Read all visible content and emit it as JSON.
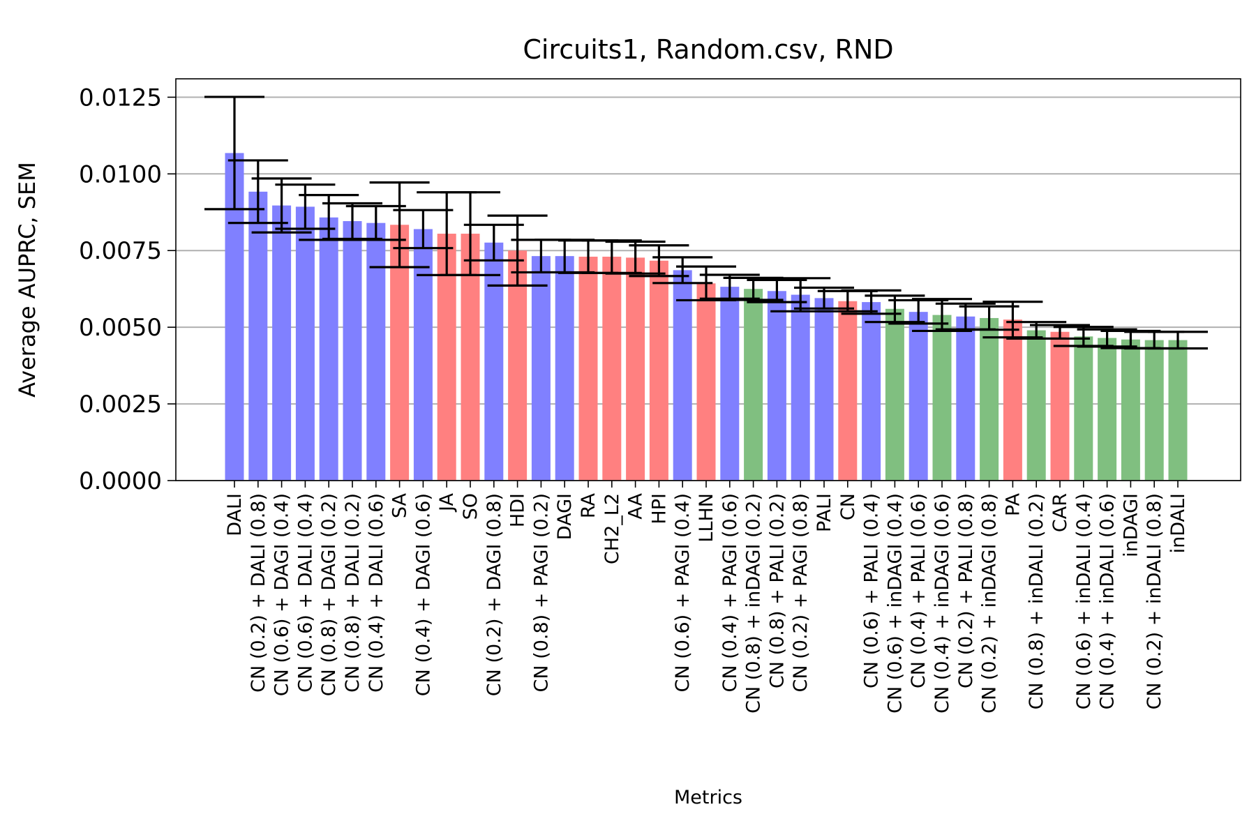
{
  "chart_data": {
    "type": "bar",
    "title": "Circuits1, Random.csv, RND",
    "xlabel": "Metrics",
    "ylabel": "Average AUPRC, SEM",
    "ylim": [
      0,
      0.0131
    ],
    "yticks": [
      "0.0000",
      "0.0025",
      "0.0050",
      "0.0075",
      "0.0100",
      "0.0125"
    ],
    "ytick_values": [
      0,
      0.0025,
      0.005,
      0.0075,
      0.01,
      0.0125
    ],
    "grid": "horizontal",
    "colors": {
      "blue": "#8080ff",
      "red": "#ff8080",
      "green": "#80bf80"
    },
    "bars": [
      {
        "label": "DALI",
        "value": 0.01068,
        "err": 0.00183,
        "color": "blue"
      },
      {
        "label": "CN (0.2) + DALI (0.8)",
        "value": 0.00942,
        "err": 0.00102,
        "color": "blue"
      },
      {
        "label": "CN (0.6) + DAGI (0.4)",
        "value": 0.00897,
        "err": 0.00088,
        "color": "blue"
      },
      {
        "label": "CN (0.6) + DALI (0.4)",
        "value": 0.00893,
        "err": 0.00072,
        "color": "blue"
      },
      {
        "label": "CN (0.8) + DAGI (0.2)",
        "value": 0.00858,
        "err": 0.00073,
        "color": "blue"
      },
      {
        "label": "CN (0.8) + DALI (0.2)",
        "value": 0.00846,
        "err": 0.00058,
        "color": "blue"
      },
      {
        "label": "CN (0.4) + DALI (0.6)",
        "value": 0.0084,
        "err": 0.00055,
        "color": "blue"
      },
      {
        "label": "SA",
        "value": 0.00834,
        "err": 0.00138,
        "color": "red"
      },
      {
        "label": "CN (0.4) + DAGI (0.6)",
        "value": 0.0082,
        "err": 0.00062,
        "color": "blue"
      },
      {
        "label": "JA",
        "value": 0.00805,
        "err": 0.00135,
        "color": "red"
      },
      {
        "label": "SO",
        "value": 0.00805,
        "err": 0.00135,
        "color": "red"
      },
      {
        "label": "CN (0.2) + DAGI (0.8)",
        "value": 0.00776,
        "err": 0.00058,
        "color": "blue"
      },
      {
        "label": "HDI",
        "value": 0.0075,
        "err": 0.00114,
        "color": "red"
      },
      {
        "label": "CN (0.8) + PAGI (0.2)",
        "value": 0.00732,
        "err": 0.00053,
        "color": "blue"
      },
      {
        "label": "DAGI",
        "value": 0.00732,
        "err": 0.00053,
        "color": "blue"
      },
      {
        "label": "RA",
        "value": 0.0073,
        "err": 0.00053,
        "color": "red"
      },
      {
        "label": "CH2_L2",
        "value": 0.0073,
        "err": 0.00053,
        "color": "red"
      },
      {
        "label": "AA",
        "value": 0.00727,
        "err": 0.00052,
        "color": "red"
      },
      {
        "label": "HPI",
        "value": 0.00717,
        "err": 0.0005,
        "color": "red"
      },
      {
        "label": "CN (0.6) + PAGI (0.4)",
        "value": 0.00686,
        "err": 0.00042,
        "color": "blue"
      },
      {
        "label": "LLHN",
        "value": 0.00643,
        "err": 0.00055,
        "color": "red"
      },
      {
        "label": "CN (0.4) + PAGI (0.6)",
        "value": 0.00632,
        "err": 0.00039,
        "color": "blue"
      },
      {
        "label": "CN (0.8) + inDAGI (0.2)",
        "value": 0.00625,
        "err": 0.00036,
        "color": "green"
      },
      {
        "label": "CN (0.8) + PALI (0.2)",
        "value": 0.00618,
        "err": 0.00036,
        "color": "blue"
      },
      {
        "label": "CN (0.2) + PAGI (0.8)",
        "value": 0.00606,
        "err": 0.00054,
        "color": "blue"
      },
      {
        "label": "PALI",
        "value": 0.00595,
        "err": 0.00034,
        "color": "blue"
      },
      {
        "label": "CN",
        "value": 0.00585,
        "err": 0.00033,
        "color": "red"
      },
      {
        "label": "CN (0.6) + PALI (0.4)",
        "value": 0.00582,
        "err": 0.00038,
        "color": "blue"
      },
      {
        "label": "CN (0.6) + inDAGI (0.4)",
        "value": 0.0056,
        "err": 0.00043,
        "color": "green"
      },
      {
        "label": "CN (0.4) + PALI (0.6)",
        "value": 0.0055,
        "err": 0.00038,
        "color": "blue"
      },
      {
        "label": "CN (0.4) + inDAGI (0.6)",
        "value": 0.0054,
        "err": 0.00052,
        "color": "green"
      },
      {
        "label": "CN (0.2) + PALI (0.8)",
        "value": 0.00535,
        "err": 0.00042,
        "color": "blue"
      },
      {
        "label": "CN (0.2) + inDAGI (0.8)",
        "value": 0.0053,
        "err": 0.00038,
        "color": "green"
      },
      {
        "label": "PA",
        "value": 0.00525,
        "err": 0.00058,
        "color": "red"
      },
      {
        "label": "CN (0.8) + inDALI (0.2)",
        "value": 0.0049,
        "err": 0.00027,
        "color": "green"
      },
      {
        "label": "CAR",
        "value": 0.00485,
        "err": 0.00022,
        "color": "red"
      },
      {
        "label": "CN (0.6) + inDALI (0.4)",
        "value": 0.0047,
        "err": 0.00031,
        "color": "green"
      },
      {
        "label": "CN (0.4) + inDALI (0.6)",
        "value": 0.00465,
        "err": 0.00028,
        "color": "green"
      },
      {
        "label": "inDAGI",
        "value": 0.0046,
        "err": 0.00028,
        "color": "green"
      },
      {
        "label": "CN (0.2) + inDALI (0.8)",
        "value": 0.00458,
        "err": 0.00027,
        "color": "green"
      },
      {
        "label": "inDALI",
        "value": 0.00458,
        "err": 0.00027,
        "color": "green"
      }
    ]
  }
}
